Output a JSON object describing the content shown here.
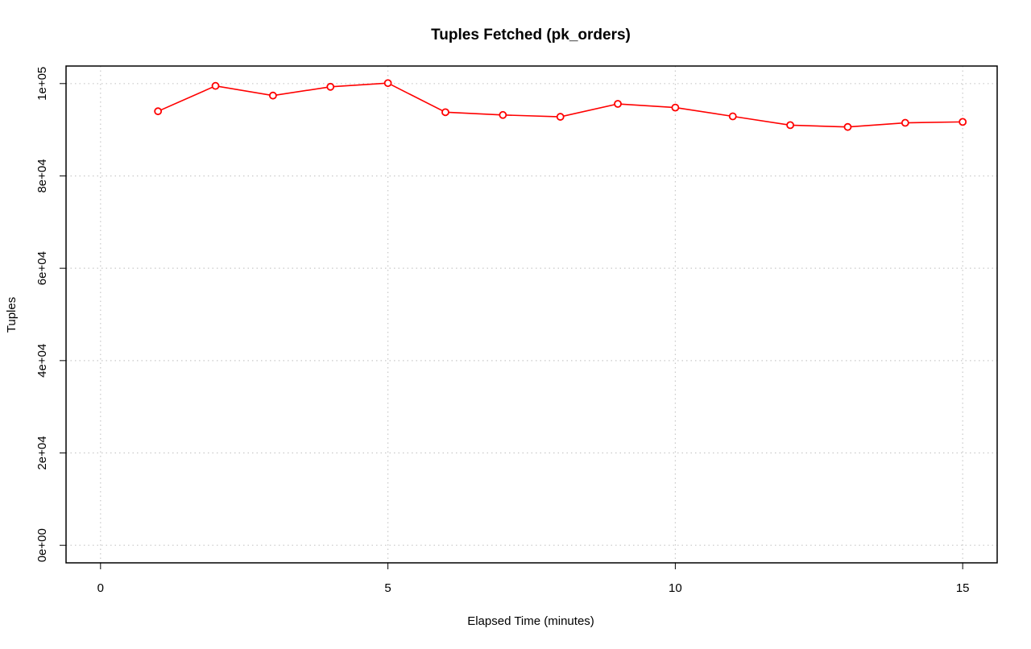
{
  "chart_data": {
    "type": "line",
    "title": "Tuples Fetched (pk_orders)",
    "xlabel": "Elapsed Time (minutes)",
    "ylabel": "Tuples",
    "xlim": [
      -0.6,
      15.6
    ],
    "ylim": [
      -3800,
      103800
    ],
    "x_ticks": [
      0,
      5,
      10,
      15
    ],
    "x_tick_labels": [
      "0",
      "5",
      "10",
      "15"
    ],
    "y_ticks": [
      0,
      20000,
      40000,
      60000,
      80000,
      100000
    ],
    "y_tick_labels": [
      "0e+00",
      "2e+04",
      "4e+04",
      "6e+04",
      "8e+04",
      "1e+05"
    ],
    "grid": true,
    "line_color": "#ff0000",
    "series": [
      {
        "x": [
          1,
          2,
          3,
          4,
          5,
          6,
          7,
          8,
          9,
          10,
          11,
          12,
          13,
          14,
          15
        ],
        "values": [
          94000,
          99500,
          97400,
          99300,
          100100,
          93800,
          93200,
          92800,
          95600,
          94800,
          92900,
          91000,
          90600,
          91500,
          91700
        ]
      }
    ]
  }
}
